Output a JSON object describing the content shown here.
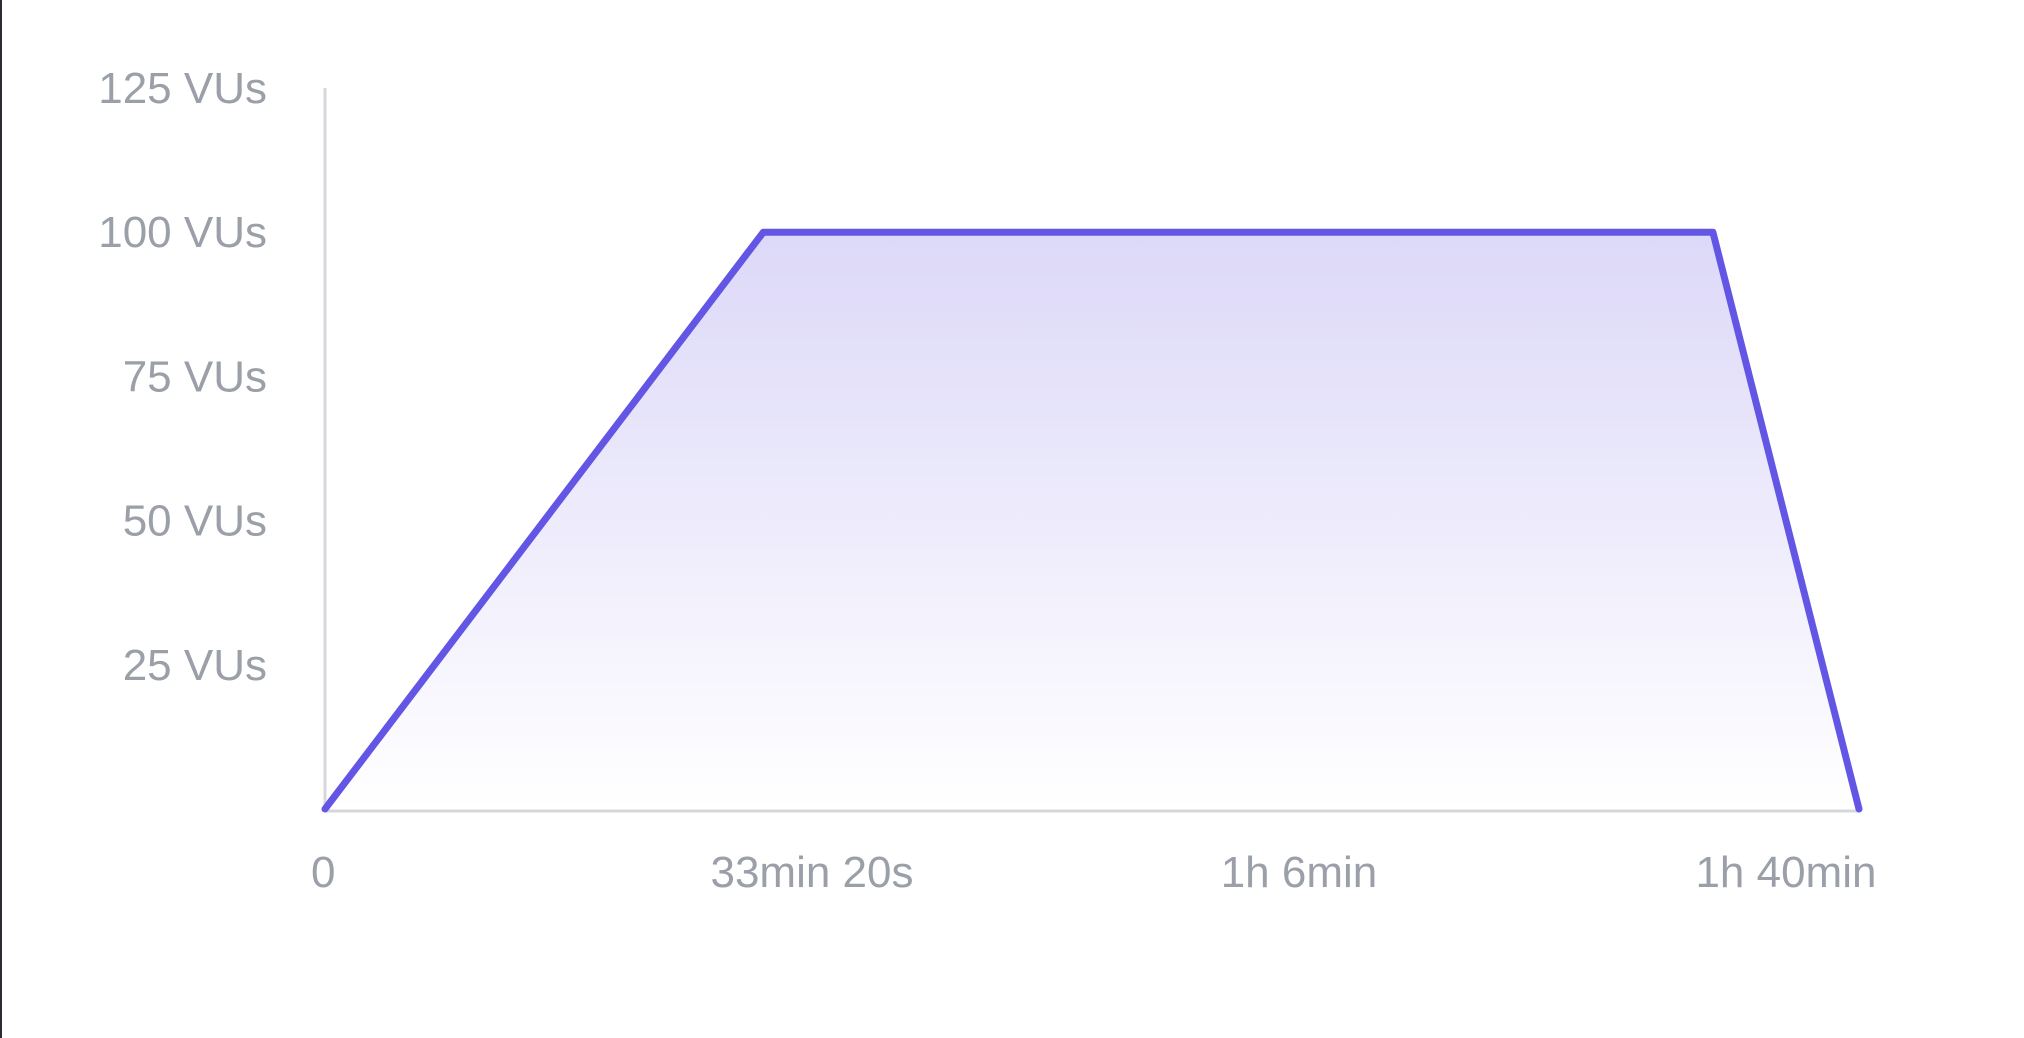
{
  "chart_data": {
    "type": "area",
    "title": "",
    "xlabel": "",
    "ylabel": "",
    "x_unit": "seconds",
    "x": [
      0,
      1800,
      5700,
      6300
    ],
    "values": [
      0,
      100,
      100,
      0
    ],
    "xlim": [
      0,
      6300
    ],
    "ylim": [
      0,
      125
    ],
    "x_ticks": [
      {
        "value": 0,
        "label": "0"
      },
      {
        "value": 2000,
        "label": "33min 20s"
      },
      {
        "value": 4000,
        "label": "1h 6min"
      },
      {
        "value": 6000,
        "label": "1h 40min"
      }
    ],
    "y_ticks": [
      {
        "value": 25,
        "label": "25 VUs"
      },
      {
        "value": 50,
        "label": "50 VUs"
      },
      {
        "value": 75,
        "label": "75 VUs"
      },
      {
        "value": 100,
        "label": "100 VUs"
      },
      {
        "value": 125,
        "label": "125 VUs"
      }
    ],
    "grid": false,
    "legend": "none",
    "colors": {
      "line": "#6356e5",
      "fill_top": "#dcd8f8",
      "fill_bottom": "#ffffff",
      "axis": "#d6d7da",
      "tick_text": "#9a9fa8"
    }
  }
}
